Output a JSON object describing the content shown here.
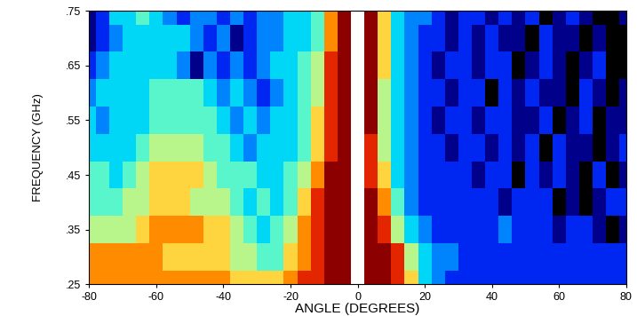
{
  "chart_data": {
    "type": "heatmap",
    "xlabel": "ANGLE (DEGREES)",
    "ylabel": "FREQUENCY (GHz)",
    "x": [
      -80,
      -76,
      -72,
      -68,
      -64,
      -60,
      -56,
      -52,
      -48,
      -44,
      -40,
      -36,
      -32,
      -28,
      -24,
      -20,
      -16,
      -12,
      -8,
      -4,
      0,
      4,
      8,
      12,
      16,
      20,
      24,
      28,
      32,
      36,
      40,
      44,
      48,
      52,
      56,
      60,
      64,
      68,
      72,
      76,
      80
    ],
    "y": [
      0.25,
      0.3,
      0.35,
      0.4,
      0.45,
      0.5,
      0.55,
      0.6,
      0.65,
      0.7,
      0.75
    ],
    "cells": [
      [
        8,
        8,
        8,
        8,
        8,
        8,
        8,
        8,
        8,
        8,
        8,
        7,
        7,
        7,
        7,
        8,
        9,
        9,
        10,
        10,
        null,
        10,
        10,
        9,
        7,
        4,
        3,
        2,
        2,
        2,
        2,
        2,
        2,
        2,
        2,
        2,
        2,
        2,
        2,
        2,
        2
      ],
      [
        8,
        8,
        8,
        8,
        8,
        8,
        7,
        7,
        7,
        7,
        7,
        6,
        6,
        5,
        5,
        7,
        8,
        9,
        10,
        10,
        null,
        10,
        10,
        9,
        6,
        4,
        3,
        3,
        2,
        2,
        2,
        2,
        2,
        2,
        2,
        2,
        2,
        2,
        2,
        2,
        2
      ],
      [
        6,
        6,
        6,
        6,
        7,
        8,
        8,
        8,
        8,
        7,
        7,
        6,
        5,
        4,
        5,
        6,
        8,
        9,
        10,
        10,
        null,
        10,
        9,
        6,
        4,
        3,
        2,
        2,
        2,
        2,
        2,
        3,
        2,
        2,
        2,
        1,
        2,
        2,
        1,
        0,
        1
      ],
      [
        5,
        5,
        5,
        6,
        6,
        7,
        7,
        7,
        6,
        6,
        6,
        5,
        4,
        5,
        4,
        5,
        7,
        9,
        10,
        10,
        null,
        10,
        8,
        5,
        3,
        2,
        2,
        2,
        2,
        2,
        2,
        1,
        2,
        2,
        2,
        0,
        1,
        0,
        1,
        2,
        2
      ],
      [
        5,
        5,
        4,
        5,
        6,
        7,
        7,
        7,
        7,
        6,
        5,
        5,
        5,
        4,
        4,
        5,
        6,
        8,
        10,
        10,
        null,
        9,
        7,
        4,
        3,
        2,
        2,
        2,
        2,
        1,
        2,
        2,
        0,
        2,
        1,
        2,
        1,
        0,
        2,
        0,
        1
      ],
      [
        4,
        4,
        4,
        4,
        5,
        6,
        6,
        6,
        6,
        5,
        5,
        4,
        3,
        4,
        4,
        4,
        5,
        7,
        9,
        10,
        null,
        9,
        6,
        4,
        3,
        2,
        2,
        1,
        2,
        2,
        1,
        2,
        1,
        2,
        0,
        2,
        1,
        1,
        0,
        1,
        2
      ],
      [
        4,
        3,
        4,
        4,
        4,
        5,
        5,
        5,
        5,
        5,
        4,
        3,
        4,
        3,
        4,
        4,
        5,
        7,
        9,
        10,
        null,
        10,
        6,
        4,
        3,
        2,
        1,
        2,
        2,
        1,
        2,
        2,
        1,
        1,
        2,
        0,
        1,
        2,
        0,
        1,
        1
      ],
      [
        3,
        4,
        4,
        4,
        4,
        5,
        5,
        5,
        5,
        4,
        3,
        4,
        3,
        2,
        3,
        4,
        5,
        6,
        9,
        10,
        null,
        10,
        6,
        4,
        3,
        2,
        2,
        1,
        2,
        2,
        0,
        2,
        1,
        2,
        1,
        1,
        0,
        2,
        1,
        0,
        1
      ],
      [
        2,
        3,
        4,
        4,
        4,
        4,
        4,
        3,
        1,
        3,
        2,
        3,
        2,
        3,
        4,
        4,
        5,
        6,
        9,
        10,
        null,
        10,
        7,
        4,
        3,
        2,
        1,
        2,
        2,
        1,
        2,
        2,
        0,
        1,
        2,
        1,
        0,
        1,
        2,
        0,
        0
      ],
      [
        1,
        2,
        3,
        4,
        4,
        4,
        4,
        4,
        3,
        2,
        3,
        1,
        2,
        3,
        3,
        4,
        4,
        5,
        8,
        10,
        null,
        10,
        7,
        4,
        3,
        2,
        2,
        1,
        2,
        1,
        2,
        1,
        1,
        0,
        2,
        1,
        1,
        0,
        1,
        0,
        0
      ],
      [
        1,
        2,
        4,
        4,
        5,
        4,
        3,
        2,
        3,
        3,
        2,
        3,
        2,
        3,
        3,
        4,
        4,
        5,
        8,
        10,
        null,
        10,
        7,
        4,
        3,
        3,
        2,
        1,
        2,
        2,
        1,
        2,
        1,
        2,
        0,
        1,
        2,
        1,
        0,
        0,
        1
      ]
    ],
    "clim": [
      0,
      10
    ],
    "xlim": [
      -80,
      80
    ],
    "ylim": [
      0.25,
      0.75
    ],
    "xticks": [
      -80,
      -60,
      -40,
      -20,
      0,
      20,
      40,
      60,
      80
    ],
    "yticks": [
      {
        "value": 0.25,
        "label": ".25"
      },
      {
        "value": 0.35,
        "label": ".35"
      },
      {
        "value": 0.45,
        "label": ".45"
      },
      {
        "value": 0.55,
        "label": ".55"
      },
      {
        "value": 0.65,
        "label": ".65"
      },
      {
        "value": 0.75,
        "label": ".75"
      }
    ]
  }
}
